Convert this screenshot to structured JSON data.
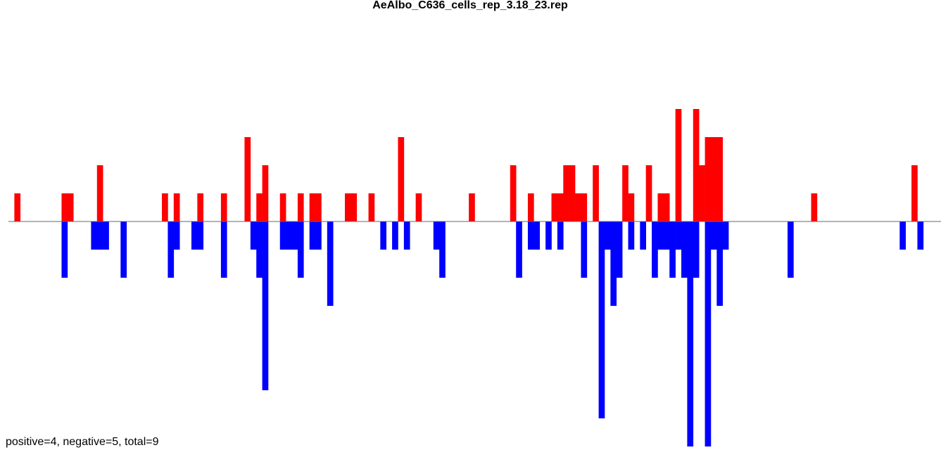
{
  "chart_data": {
    "type": "bar",
    "title": "AeAlbo_C636_cells_rep_3.18_23.rep",
    "annotation": "positive=4, negative=5, total=9",
    "ylim": [
      -8,
      4
    ],
    "series": [
      {
        "color": "#ff0000",
        "values": [
          0,
          1,
          0,
          0,
          0,
          0,
          0,
          0,
          0,
          1,
          1,
          0,
          0,
          0,
          0,
          2,
          0,
          0,
          0,
          0,
          0,
          0,
          0,
          0,
          0,
          0,
          1,
          0,
          1,
          0,
          0,
          0,
          1,
          0,
          0,
          0,
          1,
          0,
          0,
          0,
          3,
          0,
          1,
          2,
          0,
          0,
          1,
          0,
          0,
          1,
          0,
          1,
          1,
          0,
          0,
          0,
          0,
          1,
          1,
          0,
          0,
          1,
          0,
          0,
          0,
          0,
          3,
          0,
          0,
          1,
          0,
          0,
          0,
          0,
          0,
          0,
          0,
          0,
          1,
          0,
          0,
          0,
          0,
          0,
          0,
          2,
          0,
          0,
          1,
          0,
          0,
          0,
          1,
          1,
          2,
          2,
          1,
          1,
          0,
          2,
          0,
          0,
          0,
          0,
          2,
          1,
          0,
          0,
          2,
          0,
          1,
          1,
          0,
          4,
          0,
          0,
          4,
          2,
          3,
          3,
          3,
          0,
          0,
          0,
          0,
          0,
          0,
          0,
          0,
          0,
          0,
          0,
          0,
          0,
          0,
          0,
          1,
          0,
          0,
          0,
          0,
          0,
          0,
          0,
          0,
          0,
          0,
          0,
          0,
          0,
          0,
          0,
          0,
          2,
          0,
          0,
          0,
          0
        ]
      },
      {
        "color": "#0000ff",
        "values": [
          0,
          0,
          0,
          0,
          0,
          0,
          0,
          0,
          0,
          -2,
          0,
          0,
          0,
          0,
          -1,
          -1,
          -1,
          0,
          0,
          -2,
          0,
          0,
          0,
          0,
          0,
          0,
          0,
          -2,
          -1,
          0,
          0,
          -1,
          -1,
          0,
          0,
          0,
          -2,
          0,
          0,
          0,
          0,
          -1,
          -2,
          -6,
          0,
          0,
          -1,
          -1,
          -1,
          -2,
          0,
          -1,
          -1,
          0,
          -3,
          0,
          0,
          0,
          0,
          0,
          0,
          0,
          0,
          -1,
          0,
          -1,
          0,
          -1,
          0,
          0,
          0,
          0,
          -1,
          -2,
          0,
          0,
          0,
          0,
          0,
          0,
          0,
          0,
          0,
          0,
          0,
          0,
          -2,
          0,
          -1,
          -1,
          0,
          -1,
          0,
          -1,
          0,
          0,
          0,
          -2,
          0,
          0,
          -7,
          -1,
          -3,
          -2,
          0,
          -1,
          0,
          -1,
          0,
          -2,
          -1,
          -1,
          -2,
          -1,
          -2,
          -8,
          -2,
          0,
          -8,
          -1,
          -3,
          -1,
          0,
          0,
          0,
          0,
          0,
          0,
          0,
          0,
          0,
          0,
          -2,
          0,
          0,
          0,
          0,
          0,
          0,
          0,
          0,
          0,
          0,
          0,
          0,
          0,
          0,
          0,
          0,
          0,
          0,
          -1,
          0,
          0,
          -1,
          0,
          0,
          0
        ]
      }
    ]
  }
}
